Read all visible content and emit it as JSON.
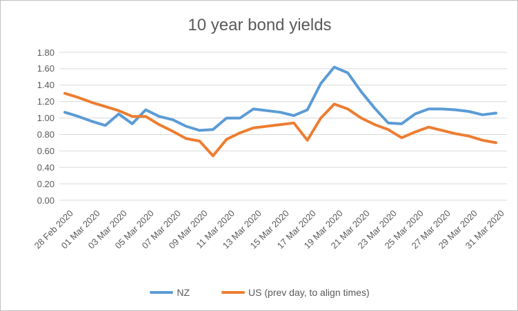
{
  "chart": {
    "title": "10 year bond yields",
    "background": "#ffffff",
    "border_color": "#bfbfbf",
    "text_color": "#595959",
    "gridline_color": "#d9d9d9"
  },
  "chart_data": {
    "type": "line",
    "title": "10 year bond yields",
    "xlabel": "",
    "ylabel": "",
    "ylim": [
      0.0,
      1.8
    ],
    "y_tick_step": 0.2,
    "y_tick_labels": [
      "0.00",
      "0.20",
      "0.40",
      "0.60",
      "0.80",
      "1.00",
      "1.20",
      "1.40",
      "1.60",
      "1.80"
    ],
    "grid": true,
    "legend_position": "bottom",
    "x_tick_every": 2,
    "categories": [
      "28 Feb 2020",
      "29 Feb 2020",
      "01 Mar 2020",
      "02 Mar 2020",
      "03 Mar 2020",
      "04 Mar 2020",
      "05 Mar 2020",
      "06 Mar 2020",
      "07 Mar 2020",
      "08 Mar 2020",
      "09 Mar 2020",
      "10 Mar 2020",
      "11 Mar 2020",
      "12 Mar 2020",
      "13 Mar 2020",
      "14 Mar 2020",
      "15 Mar 2020",
      "16 Mar 2020",
      "17 Mar 2020",
      "18 Mar 2020",
      "19 Mar 2020",
      "20 Mar 2020",
      "21 Mar 2020",
      "22 Mar 2020",
      "23 Mar 2020",
      "24 Mar 2020",
      "25 Mar 2020",
      "26 Mar 2020",
      "27 Mar 2020",
      "28 Mar 2020",
      "29 Mar 2020",
      "30 Mar 2020",
      "31 Mar 2020"
    ],
    "x_tick_labels": [
      "28 Feb 2020",
      "01 Mar 2020",
      "03 Mar 2020",
      "05 Mar 2020",
      "07 Mar 2020",
      "09 Mar 2020",
      "11 Mar 2020",
      "13 Mar 2020",
      "15 Mar 2020",
      "17 Mar 2020",
      "19 Mar 2020",
      "21 Mar 2020",
      "23 Mar 2020",
      "25 Mar 2020",
      "27 Mar 2020",
      "29 Mar 2020",
      "31 Mar 2020"
    ],
    "series": [
      {
        "name": "NZ",
        "color": "#5B9BD5",
        "values": [
          1.07,
          1.02,
          0.96,
          0.91,
          1.05,
          0.93,
          1.1,
          1.02,
          0.98,
          0.9,
          0.85,
          0.86,
          1.0,
          1.0,
          1.11,
          1.09,
          1.07,
          1.03,
          1.1,
          1.42,
          1.62,
          1.55,
          1.32,
          1.12,
          0.94,
          0.93,
          1.05,
          1.11,
          1.11,
          1.1,
          1.08,
          1.04,
          1.06
        ]
      },
      {
        "name": "US (prev day, to align times)",
        "color": "#ED7D31",
        "values": [
          1.3,
          1.25,
          1.19,
          1.14,
          1.09,
          1.02,
          1.02,
          0.92,
          0.84,
          0.75,
          0.72,
          0.54,
          0.74,
          0.82,
          0.88,
          0.9,
          0.92,
          0.94,
          0.73,
          1.0,
          1.17,
          1.11,
          1.0,
          0.92,
          0.86,
          0.76,
          0.83,
          0.89,
          0.85,
          0.81,
          0.78,
          0.73,
          0.7
        ]
      }
    ]
  }
}
